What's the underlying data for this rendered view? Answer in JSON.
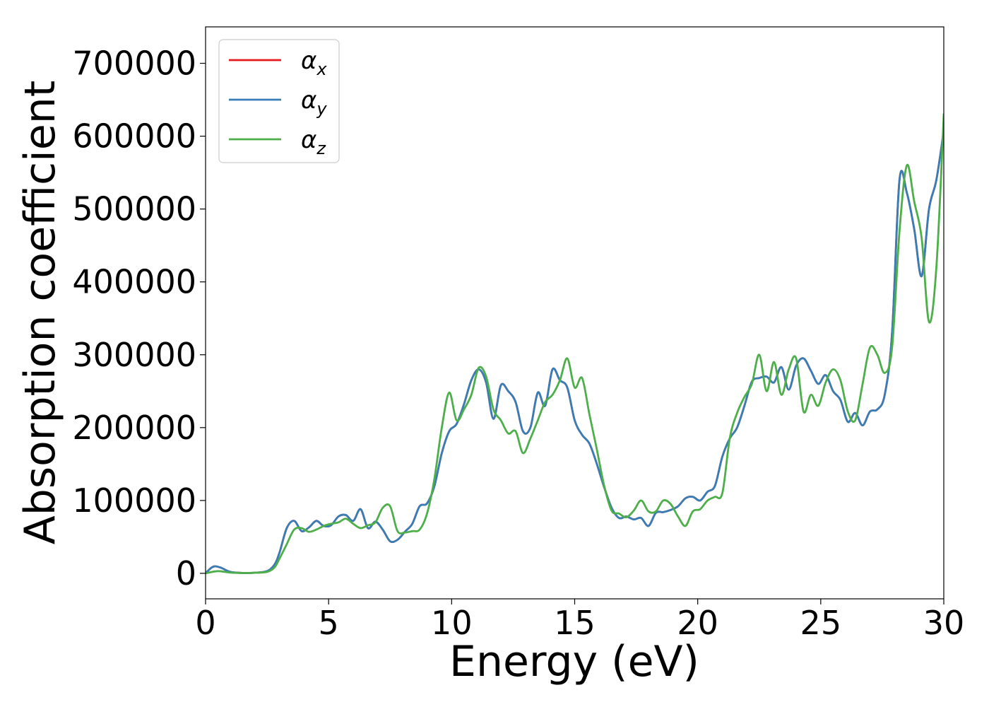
{
  "chart_data": {
    "type": "line",
    "title": "",
    "xlabel": "Energy (eV)",
    "ylabel": "Absorption coefficient",
    "xlim": [
      0,
      30
    ],
    "ylim": [
      -35000,
      750000
    ],
    "xticks": [
      "0",
      "5",
      "10",
      "15",
      "20",
      "25",
      "30"
    ],
    "xtick_values": [
      0,
      5,
      10,
      15,
      20,
      25,
      30
    ],
    "yticks": [
      "0",
      "100000",
      "200000",
      "300000",
      "400000",
      "500000",
      "600000",
      "700000"
    ],
    "ytick_values": [
      0,
      100000,
      200000,
      300000,
      400000,
      500000,
      600000,
      700000
    ],
    "grid": false,
    "legend_position": "top-left",
    "series": [
      {
        "name": "α_x",
        "legend_base": "α",
        "legend_sub": "x",
        "color": "#e41a1c",
        "x": [
          0,
          0.3,
          0.6,
          1,
          1.5,
          2,
          2.5,
          2.8,
          3.0,
          3.3,
          3.6,
          3.9,
          4.2,
          4.5,
          4.8,
          5.1,
          5.4,
          5.7,
          6.0,
          6.3,
          6.6,
          6.9,
          7.2,
          7.5,
          7.8,
          8.1,
          8.4,
          8.7,
          9.0,
          9.3,
          9.6,
          9.9,
          10.2,
          10.5,
          10.8,
          11.1,
          11.4,
          11.7,
          12.0,
          12.3,
          12.6,
          12.9,
          13.2,
          13.5,
          13.8,
          14.1,
          14.4,
          14.7,
          15.0,
          15.3,
          15.6,
          15.9,
          16.2,
          16.5,
          16.8,
          17.1,
          17.4,
          17.7,
          18.0,
          18.3,
          18.6,
          18.9,
          19.2,
          19.5,
          19.8,
          20.1,
          20.4,
          20.7,
          21.0,
          21.3,
          21.6,
          21.9,
          22.2,
          22.5,
          22.8,
          23.1,
          23.4,
          23.7,
          24.0,
          24.3,
          24.6,
          24.9,
          25.2,
          25.5,
          25.8,
          26.1,
          26.4,
          26.7,
          27.0,
          27.3,
          27.6,
          27.9,
          28.2,
          28.5,
          28.8,
          29.1,
          29.4,
          29.7,
          30.0
        ],
        "y": [
          0,
          9000,
          8000,
          2000,
          500,
          800,
          3000,
          12000,
          28000,
          62000,
          72000,
          58000,
          63000,
          72000,
          65000,
          66000,
          78000,
          80000,
          72000,
          88000,
          62000,
          71000,
          60000,
          44000,
          46000,
          57000,
          68000,
          92000,
          96000,
          120000,
          165000,
          195000,
          205000,
          232000,
          265000,
          280000,
          262000,
          212000,
          258000,
          250000,
          235000,
          195000,
          200000,
          248000,
          230000,
          280000,
          265000,
          255000,
          210000,
          190000,
          178000,
          150000,
          118000,
          90000,
          76000,
          78000,
          74000,
          76000,
          65000,
          83000,
          84000,
          87000,
          92000,
          103000,
          105000,
          100000,
          112000,
          120000,
          160000,
          185000,
          200000,
          230000,
          263000,
          268000,
          270000,
          262000,
          283000,
          252000,
          285000,
          295000,
          278000,
          260000,
          272000,
          250000,
          238000,
          208000,
          220000,
          203000,
          222000,
          225000,
          245000,
          330000,
          540000,
          522000,
          472000,
          408000,
          500000,
          540000,
          608000
        ]
      },
      {
        "name": "α_y",
        "legend_base": "α",
        "legend_sub": "y",
        "color": "#377eb8",
        "x": [
          0,
          0.3,
          0.6,
          1,
          1.5,
          2,
          2.5,
          2.8,
          3.0,
          3.3,
          3.6,
          3.9,
          4.2,
          4.5,
          4.8,
          5.1,
          5.4,
          5.7,
          6.0,
          6.3,
          6.6,
          6.9,
          7.2,
          7.5,
          7.8,
          8.1,
          8.4,
          8.7,
          9.0,
          9.3,
          9.6,
          9.9,
          10.2,
          10.5,
          10.8,
          11.1,
          11.4,
          11.7,
          12.0,
          12.3,
          12.6,
          12.9,
          13.2,
          13.5,
          13.8,
          14.1,
          14.4,
          14.7,
          15.0,
          15.3,
          15.6,
          15.9,
          16.2,
          16.5,
          16.8,
          17.1,
          17.4,
          17.7,
          18.0,
          18.3,
          18.6,
          18.9,
          19.2,
          19.5,
          19.8,
          20.1,
          20.4,
          20.7,
          21.0,
          21.3,
          21.6,
          21.9,
          22.2,
          22.5,
          22.8,
          23.1,
          23.4,
          23.7,
          24.0,
          24.3,
          24.6,
          24.9,
          25.2,
          25.5,
          25.8,
          26.1,
          26.4,
          26.7,
          27.0,
          27.3,
          27.6,
          27.9,
          28.2,
          28.5,
          28.8,
          29.1,
          29.4,
          29.7,
          30.0
        ],
        "y": [
          0,
          9000,
          8000,
          2000,
          500,
          800,
          3000,
          12000,
          28000,
          62000,
          72000,
          58000,
          63000,
          72000,
          65000,
          66000,
          78000,
          80000,
          72000,
          88000,
          62000,
          71000,
          60000,
          44000,
          46000,
          57000,
          68000,
          92000,
          96000,
          120000,
          165000,
          195000,
          205000,
          232000,
          265000,
          280000,
          262000,
          212000,
          258000,
          250000,
          235000,
          195000,
          200000,
          248000,
          230000,
          280000,
          265000,
          255000,
          210000,
          190000,
          178000,
          150000,
          118000,
          90000,
          76000,
          78000,
          74000,
          76000,
          65000,
          83000,
          84000,
          87000,
          92000,
          103000,
          105000,
          100000,
          112000,
          120000,
          160000,
          185000,
          200000,
          230000,
          263000,
          268000,
          270000,
          262000,
          283000,
          252000,
          285000,
          295000,
          278000,
          260000,
          272000,
          250000,
          238000,
          208000,
          220000,
          203000,
          222000,
          225000,
          245000,
          330000,
          540000,
          522000,
          472000,
          408000,
          500000,
          540000,
          608000
        ]
      },
      {
        "name": "α_z",
        "legend_base": "α",
        "legend_sub": "z",
        "color": "#4daf4a",
        "x": [
          0,
          0.5,
          1,
          1.5,
          2,
          2.5,
          2.8,
          3.0,
          3.3,
          3.6,
          3.9,
          4.2,
          4.5,
          4.8,
          5.1,
          5.4,
          5.7,
          6.0,
          6.3,
          6.6,
          6.9,
          7.2,
          7.5,
          7.8,
          8.1,
          8.4,
          8.7,
          9.0,
          9.3,
          9.6,
          9.9,
          10.2,
          10.5,
          10.8,
          11.1,
          11.4,
          11.7,
          12.0,
          12.3,
          12.6,
          12.9,
          13.2,
          13.5,
          13.8,
          14.1,
          14.4,
          14.7,
          15.0,
          15.3,
          15.6,
          15.9,
          16.2,
          16.5,
          16.8,
          17.1,
          17.4,
          17.7,
          18.0,
          18.3,
          18.6,
          18.9,
          19.2,
          19.5,
          19.8,
          20.1,
          20.4,
          20.7,
          21.0,
          21.3,
          21.6,
          21.9,
          22.2,
          22.5,
          22.8,
          23.1,
          23.4,
          23.7,
          24.0,
          24.3,
          24.6,
          24.9,
          25.2,
          25.5,
          25.8,
          26.1,
          26.4,
          26.7,
          27.0,
          27.3,
          27.6,
          27.9,
          28.2,
          28.5,
          28.8,
          29.1,
          29.4,
          29.7,
          30.0
        ],
        "y": [
          0,
          3000,
          1000,
          500,
          800,
          2000,
          8000,
          20000,
          40000,
          60000,
          62000,
          57000,
          60000,
          65000,
          68000,
          70000,
          75000,
          68000,
          62000,
          66000,
          70000,
          90000,
          92000,
          58000,
          56000,
          58000,
          60000,
          82000,
          130000,
          200000,
          248000,
          210000,
          225000,
          245000,
          282000,
          270000,
          225000,
          210000,
          192000,
          195000,
          165000,
          185000,
          210000,
          235000,
          245000,
          265000,
          295000,
          255000,
          268000,
          218000,
          170000,
          120000,
          86000,
          82000,
          77000,
          86000,
          100000,
          85000,
          85000,
          100000,
          95000,
          78000,
          65000,
          85000,
          88000,
          100000,
          105000,
          110000,
          185000,
          220000,
          242000,
          260000,
          300000,
          250000,
          290000,
          245000,
          280000,
          295000,
          222000,
          245000,
          230000,
          262000,
          280000,
          265000,
          222000,
          210000,
          260000,
          310000,
          300000,
          275000,
          310000,
          470000,
          560000,
          510000,
          460000,
          345000,
          420000,
          630000
        ]
      }
    ]
  }
}
